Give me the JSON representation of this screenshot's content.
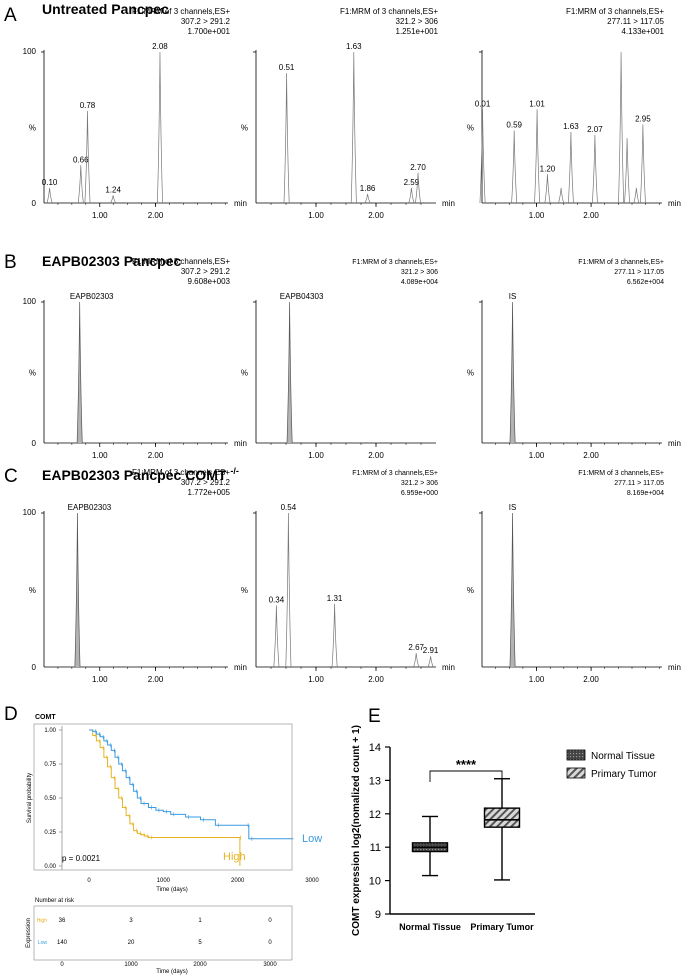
{
  "panels": {
    "A": {
      "letter": "A",
      "title": "Untreated Pancpec",
      "charts": [
        {
          "header": [
            "F1:MRM of 3 channels,ES+",
            "307.2 > 291.2",
            "1.700e+001"
          ],
          "y_top": "100",
          "y_mid": "%",
          "y_zero": "0",
          "x_unit": "min",
          "x_ticks": [
            "1.00",
            "2.00"
          ],
          "xmin": 0,
          "xmax": 3.3,
          "peaks": [
            {
              "t": 0.1,
              "h": 10,
              "label": "0.10"
            },
            {
              "t": 0.66,
              "h": 25,
              "label": "0.66"
            },
            {
              "t": 0.78,
              "h": 61,
              "label": "0.78"
            },
            {
              "t": 1.24,
              "h": 5,
              "label": "1.24"
            },
            {
              "t": 2.08,
              "h": 100,
              "label": "2.08"
            }
          ]
        },
        {
          "header": [
            "F1:MRM of 3 channels,ES+",
            "321.2 > 306",
            "1.251e+001"
          ],
          "y_top": "",
          "y_mid": "%",
          "y_zero": "",
          "x_unit": "min",
          "x_ticks": [
            "1.00",
            "2.00"
          ],
          "xmin": 0,
          "xmax": 3.0,
          "peaks": [
            {
              "t": 0.51,
              "h": 86,
              "label": "0.51"
            },
            {
              "t": 1.63,
              "h": 100,
              "label": "1.63"
            },
            {
              "t": 1.86,
              "h": 6,
              "label": "1.86"
            },
            {
              "t": 2.59,
              "h": 10,
              "label": "2.59"
            },
            {
              "t": 2.7,
              "h": 20,
              "label": "2.70"
            }
          ]
        },
        {
          "header": [
            "F1:MRM of 3 channels,ES+",
            "277.11 > 117.05",
            "4.133e+001"
          ],
          "y_top": "",
          "y_mid": "%",
          "y_zero": "",
          "x_unit": "min",
          "x_ticks": [
            "1.00",
            "2.00"
          ],
          "xmin": 0,
          "xmax": 3.3,
          "peaks": [
            {
              "t": 0.01,
              "h": 62,
              "label": "0.01"
            },
            {
              "t": 0.59,
              "h": 48,
              "label": "0.59"
            },
            {
              "t": 1.01,
              "h": 62,
              "label": "1.01"
            },
            {
              "t": 1.2,
              "h": 19,
              "label": "1.20"
            },
            {
              "t": 1.45,
              "h": 10,
              "label": ""
            },
            {
              "t": 1.63,
              "h": 47,
              "label": "1.63"
            },
            {
              "t": 2.07,
              "h": 45,
              "label": "2.07"
            },
            {
              "t": 2.55,
              "h": 100,
              "label": ""
            },
            {
              "t": 2.66,
              "h": 43,
              "label": ""
            },
            {
              "t": 2.83,
              "h": 10,
              "label": ""
            },
            {
              "t": 2.95,
              "h": 52,
              "label": "2.95"
            }
          ]
        }
      ]
    },
    "B": {
      "letter": "B",
      "title": "EAPB02303 Pancpec",
      "charts": [
        {
          "header": [
            "F1:MRM of 3 channels,ES+",
            "307.2 > 291.2",
            "9.608e+003"
          ],
          "y_top": "100",
          "y_mid": "%",
          "y_zero": "0",
          "x_unit": "min",
          "x_ticks": [
            "1.00",
            "2.00"
          ],
          "xmin": 0,
          "xmax": 3.3,
          "peaks": [
            {
              "t": 0.64,
              "h": 100,
              "label": "EAPB02303",
              "fill": true
            }
          ]
        },
        {
          "header": [
            "F1:MRM of 3 channels,ES+",
            "321.2 > 306",
            "4.089e+004"
          ],
          "y_top": "",
          "y_mid": "%",
          "y_zero": "",
          "x_unit": "",
          "x_ticks": [
            "1.00",
            "2.00"
          ],
          "xmin": 0,
          "xmax": 3.0,
          "peaks": [
            {
              "t": 0.56,
              "h": 100,
              "label": "EAPB04303",
              "fill": true
            }
          ]
        },
        {
          "header": [
            "F1:MRM of 3 channels,ES+",
            "277.11 > 117.05",
            "6.562e+004"
          ],
          "y_top": "",
          "y_mid": "%",
          "y_zero": "",
          "x_unit": "min",
          "x_ticks": [
            "1.00",
            "2.00"
          ],
          "xmin": 0,
          "xmax": 3.3,
          "peaks": [
            {
              "t": 0.56,
              "h": 100,
              "label": "IS",
              "fill": true
            }
          ]
        }
      ]
    },
    "C": {
      "letter": "C",
      "title": "EAPB02303 Pancpec COMT",
      "title_sup": "-/-",
      "charts": [
        {
          "header": [
            "F1:MRM of 3 channels,ES+",
            "307.2 > 291.2",
            "1.772e+005"
          ],
          "y_top": "100",
          "y_mid": "%",
          "y_zero": "0",
          "x_unit": "min",
          "x_ticks": [
            "1.00",
            "2.00"
          ],
          "xmin": 0,
          "xmax": 3.3,
          "peaks": [
            {
              "t": 0.6,
              "h": 100,
              "label": "EAPB02303",
              "fill": true
            }
          ]
        },
        {
          "header": [
            "F1:MRM of 3 channels,ES+",
            "321.2 > 306",
            "6.959e+000"
          ],
          "y_top": "",
          "y_mid": "%",
          "y_zero": "",
          "x_unit": "min",
          "x_ticks": [
            "1.00",
            "2.00"
          ],
          "xmin": 0,
          "xmax": 3.0,
          "peaks": [
            {
              "t": 0.34,
              "h": 40,
              "label": "0.34"
            },
            {
              "t": 0.54,
              "h": 100,
              "label": "0.54"
            },
            {
              "t": 1.31,
              "h": 41,
              "label": "1.31"
            },
            {
              "t": 2.67,
              "h": 9,
              "label": "2.67"
            },
            {
              "t": 2.91,
              "h": 7,
              "label": "2.91"
            }
          ]
        },
        {
          "header": [
            "F1:MRM of 3 channels,ES+",
            "277.11 > 117.05",
            "8.169e+004"
          ],
          "y_top": "",
          "y_mid": "%",
          "y_zero": "",
          "x_unit": "min",
          "x_ticks": [
            "1.00",
            "2.00"
          ],
          "xmin": 0,
          "xmax": 3.3,
          "peaks": [
            {
              "t": 0.56,
              "h": 100,
              "label": "IS",
              "fill": true
            }
          ]
        }
      ]
    },
    "D": {
      "letter": "D",
      "title": "COMT",
      "ylabel": "Survival probability",
      "xlabel": "Time (days)",
      "y_ticks": [
        "0.00",
        "0.25",
        "0.50",
        "0.75",
        "1.00"
      ],
      "x_ticks": [
        "0",
        "1000",
        "2000",
        "3000"
      ],
      "pvalue": "p = 0.0021",
      "risk_title": "Number at risk",
      "risk_ylabel": "Expression",
      "risk": [
        {
          "group": "High",
          "counts": [
            "36",
            "3",
            "1",
            "0"
          ]
        },
        {
          "group": "Low",
          "counts": [
            "140",
            "20",
            "5",
            "0"
          ]
        }
      ]
    },
    "E": {
      "letter": "E",
      "ylabel": "COMT expression log2(nomalized count + 1)",
      "y_ticks": [
        "9",
        "10",
        "11",
        "12",
        "13",
        "14"
      ],
      "significance": "****",
      "legend": [
        "Normal Tissue",
        "Primary Tumor"
      ]
    }
  },
  "chart_data": [
    {
      "type": "line",
      "title": "COMT",
      "xlabel": "Time (days)",
      "ylabel": "Survival probability",
      "xlim": [
        0,
        3000
      ],
      "ylim": [
        0,
        1
      ],
      "series": [
        {
          "name": "High",
          "color": "#e6b422",
          "x": [
            0,
            50,
            100,
            150,
            200,
            250,
            300,
            350,
            400,
            450,
            500,
            550,
            600,
            650,
            700,
            750,
            800,
            2000,
            2030
          ],
          "y": [
            1.0,
            0.96,
            0.92,
            0.87,
            0.8,
            0.73,
            0.65,
            0.57,
            0.5,
            0.43,
            0.37,
            0.31,
            0.26,
            0.24,
            0.23,
            0.22,
            0.21,
            0.21,
            0.0
          ]
        },
        {
          "name": "Low",
          "color": "#3b9be0",
          "x": [
            0,
            50,
            100,
            150,
            200,
            250,
            300,
            350,
            400,
            450,
            500,
            550,
            600,
            650,
            700,
            800,
            900,
            1000,
            1100,
            1300,
            1500,
            1700,
            2100,
            2150,
            2750
          ],
          "y": [
            1.0,
            0.99,
            0.97,
            0.95,
            0.92,
            0.89,
            0.85,
            0.8,
            0.75,
            0.7,
            0.65,
            0.6,
            0.55,
            0.5,
            0.46,
            0.43,
            0.41,
            0.4,
            0.38,
            0.36,
            0.34,
            0.3,
            0.3,
            0.2,
            0.2
          ]
        }
      ]
    },
    {
      "type": "box",
      "ylabel": "COMT expression log2(nomalized count + 1)",
      "categories": [
        "Normal Tissue",
        "Primary Tumor"
      ],
      "ylim": [
        9,
        14
      ],
      "boxes": [
        {
          "name": "Normal Tissue",
          "min": 10.15,
          "q1": 10.87,
          "median": 11.0,
          "q3": 11.13,
          "max": 11.92
        },
        {
          "name": "Primary Tumor",
          "min": 10.02,
          "q1": 11.6,
          "median": 11.82,
          "q3": 12.17,
          "max": 13.05
        }
      ],
      "annotation": "****"
    }
  ]
}
